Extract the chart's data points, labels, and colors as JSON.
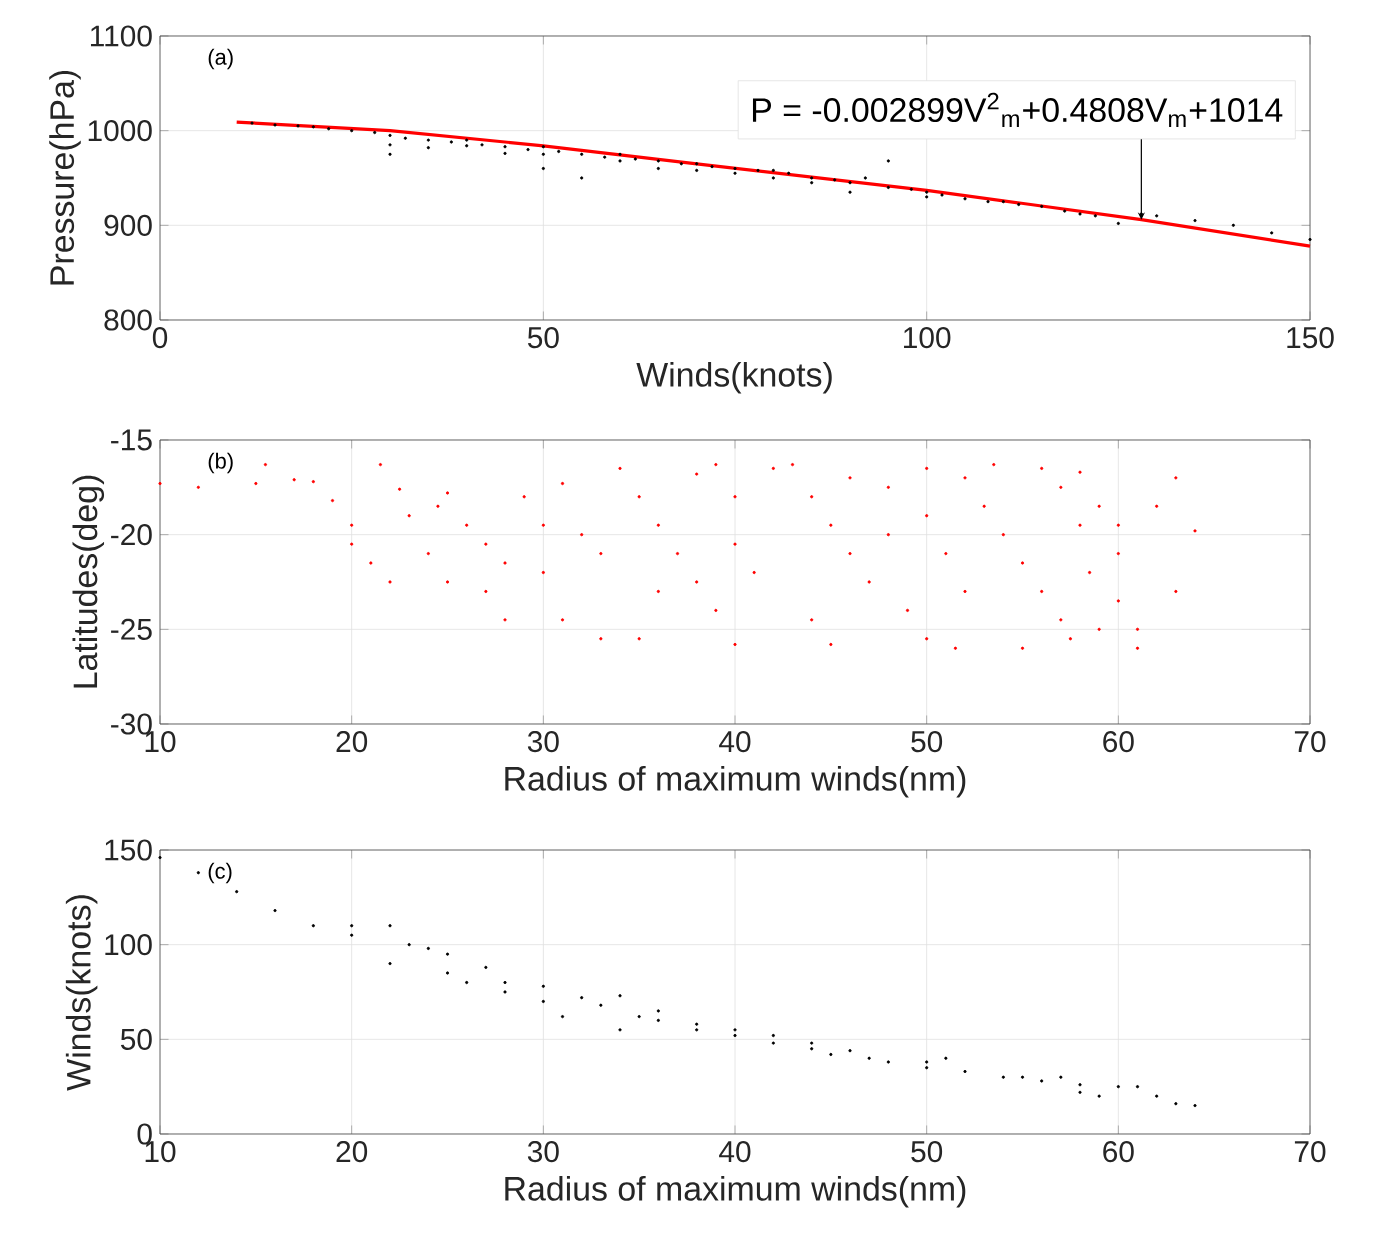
{
  "chart_data": [
    {
      "type": "scatter",
      "xlabel": "Winds(knots)",
      "ylabel": "Pressure(hPa)",
      "xlim": [
        0,
        150
      ],
      "ylim": [
        800,
        1100
      ],
      "xticks": [
        0,
        50,
        100,
        150
      ],
      "yticks": [
        800,
        900,
        1000,
        1100
      ],
      "grid": true,
      "annotations": [
        "(a)",
        {
          "text": "P = -0.002899V$^{2}$$_{m}$+0.4808V$_{m}$+1014",
          "x": 128,
          "y": 906
        }
      ],
      "series": [
        {
          "color": "#000000",
          "x": [
            12,
            15,
            18,
            20,
            22,
            25,
            28,
            30,
            30,
            30,
            32,
            35,
            35,
            38,
            40,
            40,
            42,
            45,
            45,
            48,
            50,
            50,
            50,
            52,
            55,
            55,
            58,
            60,
            60,
            62,
            65,
            65,
            68,
            70,
            70,
            72,
            75,
            75,
            78,
            80,
            80,
            82,
            85,
            85,
            88,
            90,
            90,
            92,
            95,
            95,
            98,
            100,
            100,
            102,
            105,
            108,
            110,
            112,
            115,
            118,
            120,
            122,
            125,
            128,
            130,
            135,
            140,
            145,
            150
          ],
          "values": [
            1008,
            1006,
            1005,
            1004,
            1002,
            1000,
            998,
            995,
            985,
            975,
            992,
            990,
            982,
            988,
            990,
            984,
            985,
            983,
            976,
            980,
            983,
            975,
            960,
            978,
            975,
            950,
            972,
            975,
            968,
            970,
            968,
            960,
            965,
            965,
            958,
            962,
            960,
            955,
            958,
            958,
            950,
            955,
            950,
            945,
            948,
            945,
            935,
            950,
            968,
            940,
            938,
            935,
            930,
            932,
            928,
            925,
            925,
            922,
            920,
            915,
            912,
            910,
            902,
            912,
            910,
            905,
            900,
            892,
            885
          ]
        },
        {
          "type": "line",
          "color": "#ff0000",
          "x": [
            10,
            30,
            50,
            70,
            100,
            128,
            150
          ],
          "values": [
            1009,
            1000,
            984,
            965,
            937,
            906,
            878
          ]
        }
      ]
    },
    {
      "type": "scatter",
      "xlabel": "Radius of maximum winds(nm)",
      "ylabel": "Latitudes(deg)",
      "xlim": [
        10,
        70
      ],
      "ylim": [
        -30,
        -15
      ],
      "xticks": [
        10,
        20,
        30,
        40,
        50,
        60,
        70
      ],
      "yticks": [
        -30,
        -25,
        -20,
        -15
      ],
      "grid": true,
      "annotations": [
        "(b)"
      ],
      "series": [
        {
          "color": "#ff0000",
          "x": [
            10,
            12,
            15,
            17,
            15.5,
            18,
            19,
            20,
            20,
            21,
            22,
            21.5,
            22.5,
            23,
            24,
            25,
            24.5,
            25,
            26,
            27,
            28,
            27,
            28,
            29,
            30,
            30,
            31,
            31,
            32,
            33,
            33,
            34,
            35,
            36,
            37,
            38,
            39,
            35,
            36,
            38,
            39,
            40,
            40,
            40,
            41,
            42,
            43,
            44,
            45,
            46,
            47,
            44,
            45,
            46,
            48,
            48,
            49,
            50,
            50,
            51,
            52,
            51.5,
            50,
            52,
            53,
            53.5,
            54,
            55,
            56,
            57,
            57.5,
            55,
            56,
            57,
            58,
            58,
            58.5,
            59,
            59,
            60,
            60,
            61,
            61,
            62,
            63,
            64,
            63,
            60
          ],
          "values": [
            -17.3,
            -17.5,
            -17.3,
            -17.1,
            -16.3,
            -17.2,
            -18.2,
            -19.5,
            -20.5,
            -21.5,
            -22.5,
            -16.3,
            -17.6,
            -19,
            -21,
            -22.5,
            -18.5,
            -17.8,
            -19.5,
            -20.5,
            -21.5,
            -23,
            -24.5,
            -18,
            -19.5,
            -22,
            -17.3,
            -24.5,
            -20,
            -21,
            -25.5,
            -16.5,
            -18,
            -19.5,
            -21,
            -22.5,
            -24,
            -25.5,
            -23,
            -16.8,
            -16.3,
            -18,
            -20.5,
            -25.8,
            -22,
            -16.5,
            -16.3,
            -18,
            -19.5,
            -21,
            -22.5,
            -24.5,
            -25.8,
            -17,
            -17.5,
            -20,
            -24,
            -16.5,
            -19,
            -21,
            -23,
            -26,
            -25.5,
            -17,
            -18.5,
            -16.3,
            -20,
            -21.5,
            -23,
            -24.5,
            -25.5,
            -26,
            -16.5,
            -17.5,
            -16.7,
            -19.5,
            -22,
            -25,
            -18.5,
            -19.5,
            -23.5,
            -25,
            -26,
            -18.5,
            -17,
            -19.8,
            -23,
            -21
          ]
        }
      ]
    },
    {
      "type": "scatter",
      "xlabel": "Radius of maximum winds(nm)",
      "ylabel": "Winds(knots)",
      "xlim": [
        10,
        70
      ],
      "ylim": [
        0,
        150
      ],
      "xticks": [
        10,
        20,
        30,
        40,
        50,
        60,
        70
      ],
      "yticks": [
        0,
        50,
        100,
        150
      ],
      "grid": true,
      "annotations": [
        "(c)"
      ],
      "series": [
        {
          "color": "#000000",
          "x": [
            10,
            12,
            14,
            16,
            18,
            20,
            20,
            22,
            22,
            23,
            24,
            25,
            25,
            26,
            27,
            28,
            28,
            30,
            30,
            31,
            32,
            33,
            34,
            34,
            35,
            36,
            36,
            38,
            38,
            40,
            40,
            42,
            42,
            44,
            44,
            45,
            46,
            47,
            48,
            50,
            50,
            51,
            52,
            54,
            55,
            56,
            57,
            58,
            58,
            59,
            60,
            61,
            62,
            63,
            64
          ],
          "values": [
            146,
            138,
            128,
            118,
            110,
            105,
            110,
            110,
            90,
            100,
            98,
            95,
            85,
            80,
            88,
            80,
            75,
            70,
            78,
            62,
            72,
            68,
            73,
            55,
            62,
            60,
            65,
            55,
            58,
            52,
            55,
            48,
            52,
            45,
            48,
            42,
            44,
            40,
            38,
            35,
            38,
            40,
            33,
            30,
            30,
            28,
            30,
            26,
            22,
            20,
            25,
            25,
            20,
            16,
            15
          ]
        }
      ]
    }
  ]
}
